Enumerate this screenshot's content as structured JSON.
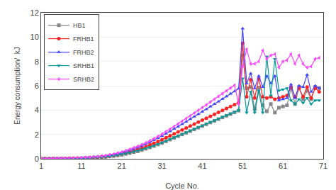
{
  "chart_data": {
    "type": "line",
    "xlabel": "Cycle No.",
    "ylabel": "Energy consumption/  kJ",
    "x": [
      1,
      2,
      3,
      4,
      5,
      6,
      7,
      8,
      9,
      10,
      11,
      12,
      13,
      14,
      15,
      16,
      17,
      18,
      19,
      20,
      21,
      22,
      23,
      24,
      25,
      26,
      27,
      28,
      29,
      30,
      31,
      32,
      33,
      34,
      35,
      36,
      37,
      38,
      39,
      40,
      41,
      42,
      43,
      44,
      45,
      46,
      47,
      48,
      49,
      50,
      51,
      52,
      53,
      54,
      55,
      56,
      57,
      58,
      59,
      60,
      61,
      62,
      63,
      64,
      65,
      66,
      67,
      68,
      69,
      70
    ],
    "xlim": [
      1,
      71
    ],
    "ylim": [
      0,
      12
    ],
    "xticks": [
      1,
      11,
      21,
      31,
      41,
      51,
      61,
      71
    ],
    "yticks": [
      0,
      2,
      4,
      6,
      8,
      10,
      12
    ],
    "grid": "y",
    "legend": "upper left",
    "series": [
      {
        "name": "HB1",
        "color": "#888888",
        "marker": "square",
        "values": [
          0.01,
          0.02,
          0.01,
          0.02,
          0.02,
          0.03,
          0.02,
          0.03,
          0.03,
          0.04,
          0.04,
          0.06,
          0.07,
          0.09,
          0.1,
          0.14,
          0.16,
          0.2,
          0.23,
          0.28,
          0.33,
          0.4,
          0.47,
          0.55,
          0.62,
          0.72,
          0.83,
          0.94,
          1.05,
          1.18,
          1.3,
          1.44,
          1.58,
          1.72,
          1.86,
          2.0,
          2.14,
          2.28,
          2.42,
          2.56,
          2.7,
          2.84,
          2.98,
          3.12,
          3.26,
          3.4,
          3.54,
          3.68,
          3.82,
          3.96,
          8.5,
          5.8,
          5.9,
          4.1,
          5.85,
          4.4,
          3.9,
          4.5,
          3.8,
          4.2,
          4.3,
          4.4,
          5.8,
          4.5,
          5.9,
          4.9,
          5.6,
          4.9,
          5.9,
          5.8
        ]
      },
      {
        "name": "FRHB1",
        "color": "#FF2222",
        "marker": "circle",
        "values": [
          0.01,
          0.02,
          0.02,
          0.03,
          0.02,
          0.03,
          0.03,
          0.04,
          0.04,
          0.05,
          0.05,
          0.08,
          0.09,
          0.12,
          0.13,
          0.17,
          0.19,
          0.24,
          0.29,
          0.35,
          0.41,
          0.5,
          0.58,
          0.68,
          0.77,
          0.89,
          1.01,
          1.15,
          1.28,
          1.43,
          1.58,
          1.74,
          1.9,
          2.06,
          2.22,
          2.38,
          2.54,
          2.7,
          2.86,
          3.02,
          3.18,
          3.34,
          3.5,
          3.66,
          3.82,
          3.98,
          4.14,
          4.3,
          4.46,
          4.62,
          9.5,
          5.1,
          6.5,
          5.0,
          6.6,
          5.1,
          5.0,
          5.1,
          4.9,
          5.0,
          5.1,
          5.2,
          5.9,
          5.1,
          5.8,
          5.1,
          5.9,
          5.0,
          5.8,
          5.5
        ]
      },
      {
        "name": "FRHB2",
        "color": "#4444FF",
        "marker": "triangle-up",
        "values": [
          0.01,
          0.02,
          0.02,
          0.03,
          0.03,
          0.04,
          0.04,
          0.05,
          0.05,
          0.07,
          0.07,
          0.1,
          0.11,
          0.15,
          0.16,
          0.21,
          0.24,
          0.3,
          0.35,
          0.43,
          0.5,
          0.6,
          0.7,
          0.82,
          0.93,
          1.07,
          1.21,
          1.37,
          1.53,
          1.7,
          1.88,
          2.07,
          2.26,
          2.46,
          2.65,
          2.85,
          3.05,
          3.26,
          3.46,
          3.67,
          3.87,
          4.08,
          4.29,
          4.5,
          4.71,
          4.92,
          5.13,
          5.34,
          5.55,
          5.76,
          10.7,
          6.2,
          7.0,
          5.8,
          6.8,
          5.9,
          6.8,
          6.2,
          6.8,
          4.8,
          4.9,
          5.0,
          6.1,
          5.0,
          6.0,
          5.9,
          6.9,
          5.5,
          6.0,
          5.8
        ]
      },
      {
        "name": "SRHB1",
        "color": "#009999",
        "marker": "triangle-down",
        "values": [
          0.01,
          0.01,
          0.01,
          0.02,
          0.02,
          0.02,
          0.02,
          0.03,
          0.03,
          0.03,
          0.04,
          0.05,
          0.07,
          0.09,
          0.11,
          0.14,
          0.17,
          0.21,
          0.26,
          0.31,
          0.37,
          0.44,
          0.51,
          0.59,
          0.67,
          0.77,
          0.87,
          0.98,
          1.09,
          1.21,
          1.34,
          1.47,
          1.61,
          1.75,
          1.89,
          2.03,
          2.17,
          2.31,
          2.45,
          2.59,
          2.73,
          2.87,
          3.01,
          3.15,
          3.29,
          3.43,
          3.57,
          3.71,
          3.85,
          3.99,
          6.6,
          3.8,
          5.5,
          3.8,
          5.6,
          3.8,
          8.4,
          5.2,
          8.2,
          5.6,
          5.7,
          5.8,
          4.8,
          4.5,
          4.9,
          4.6,
          5.0,
          4.5,
          4.8,
          4.8
        ]
      },
      {
        "name": "SRHB2",
        "color": "#FF44FF",
        "marker": "triangle-left",
        "values": [
          0.01,
          0.02,
          0.02,
          0.03,
          0.03,
          0.04,
          0.04,
          0.05,
          0.05,
          0.07,
          0.08,
          0.1,
          0.12,
          0.16,
          0.18,
          0.23,
          0.27,
          0.33,
          0.39,
          0.48,
          0.56,
          0.67,
          0.78,
          0.91,
          1.03,
          1.17,
          1.32,
          1.49,
          1.66,
          1.84,
          2.03,
          2.24,
          2.44,
          2.66,
          2.87,
          3.09,
          3.31,
          3.53,
          3.76,
          3.98,
          4.21,
          4.44,
          4.67,
          4.9,
          5.13,
          5.36,
          5.59,
          5.82,
          6.05,
          4.5,
          7.6,
          9.0,
          7.8,
          7.8,
          8.0,
          8.9,
          8.2,
          8.5,
          8.6,
          7.5,
          8.0,
          8.1,
          8.6,
          7.8,
          8.5,
          7.8,
          7.5,
          7.6,
          8.2,
          8.3
        ]
      }
    ]
  }
}
